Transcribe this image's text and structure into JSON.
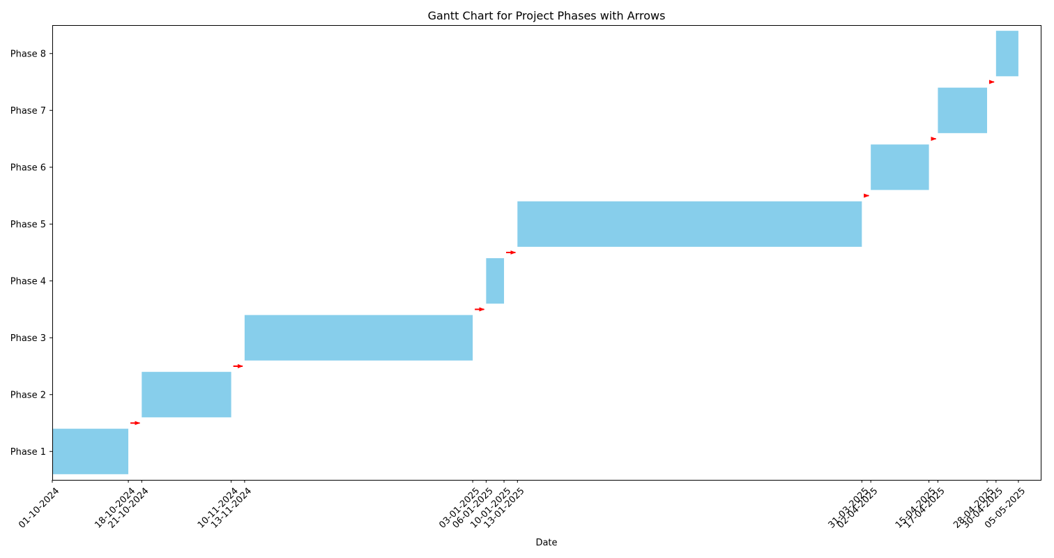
{
  "chart_data": {
    "type": "gantt",
    "title": "Gantt Chart for Project Phases with Arrows",
    "xlabel": "Date",
    "ylabel": "",
    "bar_color": "#87CEEB",
    "arrow_color": "#FF0000",
    "grid": false,
    "xlim": [
      "2024-10-01",
      "2025-05-10"
    ],
    "phases": [
      {
        "label": "Phase 1",
        "start": "01-10-2024",
        "end": "18-10-2024"
      },
      {
        "label": "Phase 2",
        "start": "21-10-2024",
        "end": "10-11-2024"
      },
      {
        "label": "Phase 3",
        "start": "13-11-2024",
        "end": "03-01-2025"
      },
      {
        "label": "Phase 4",
        "start": "06-01-2025",
        "end": "10-01-2025"
      },
      {
        "label": "Phase 5",
        "start": "13-01-2025",
        "end": "31-03-2025"
      },
      {
        "label": "Phase 6",
        "start": "02-04-2025",
        "end": "15-04-2025"
      },
      {
        "label": "Phase 7",
        "start": "17-04-2025",
        "end": "28-04-2025"
      },
      {
        "label": "Phase 8",
        "start": "30-04-2025",
        "end": "05-05-2025"
      }
    ],
    "x_tick_labels": [
      "01-10-2024",
      "18-10-2024",
      "21-10-2024",
      "10-11-2024",
      "13-11-2024",
      "03-01-2025",
      "06-01-2025",
      "10-01-2025",
      "13-01-2025",
      "31-03-2025",
      "02-04-2025",
      "15-04-2025",
      "17-04-2025",
      "28-04-2025",
      "30-04-2025",
      "05-05-2025"
    ]
  }
}
